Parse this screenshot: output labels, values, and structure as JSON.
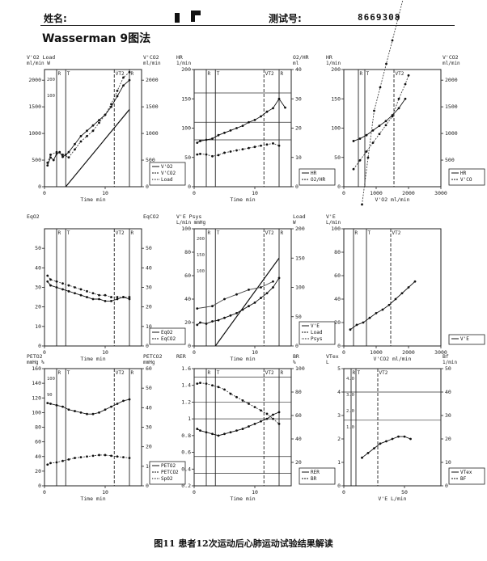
{
  "header": {
    "name_label": "姓名:",
    "id_label": "测试号:",
    "id_value": "8669308"
  },
  "title": "Wasserman 9图法",
  "caption": "图11 患者12次运动后心肺运动试验结果解读",
  "chart_data": [
    {
      "id": "p1",
      "type": "scatter",
      "ylabel_left": "V'O2 Load",
      "ylabel_left_unit": "ml/min W",
      "ylabel_right": "V'CO2",
      "ylabel_right_unit": "ml/min",
      "xlabel": "Time min",
      "xlim": [
        0,
        16
      ],
      "ylim": [
        0,
        2200
      ],
      "yr_lim": [
        0,
        2200
      ],
      "xticks": [
        0,
        10
      ],
      "yticks": [
        0,
        500,
        1000,
        1500,
        2000
      ],
      "yr_ticks": [
        0,
        500,
        1000,
        1500,
        2000
      ],
      "inner_ticks": [
        "200",
        "100"
      ],
      "vlines": [
        2.0,
        3.5,
        11.5,
        14.0
      ],
      "vline_labels": [
        "R",
        "T",
        "VT2",
        "R"
      ],
      "legend": [
        "V'O2",
        "V'CO2",
        "Load"
      ],
      "series": [
        {
          "name": "V'O2",
          "x": [
            0.5,
            1,
            1.5,
            2,
            2.5,
            3,
            3.5,
            4,
            5,
            6,
            7,
            8,
            9,
            10,
            11,
            12,
            13,
            14
          ],
          "y": [
            400,
            550,
            500,
            620,
            650,
            560,
            600,
            650,
            800,
            950,
            1050,
            1150,
            1250,
            1350,
            1500,
            1700,
            1900,
            2000
          ]
        },
        {
          "name": "V'CO2",
          "x": [
            0.5,
            1,
            2,
            3,
            4,
            5,
            6,
            7,
            8,
            9,
            10,
            11,
            12,
            13,
            14
          ],
          "y": [
            450,
            600,
            650,
            600,
            550,
            700,
            850,
            950,
            1050,
            1200,
            1350,
            1550,
            1800,
            2050,
            2150
          ]
        },
        {
          "name": "Load",
          "x": [
            3.5,
            14
          ],
          "y": [
            0,
            1450
          ]
        }
      ]
    },
    {
      "id": "p2",
      "type": "scatter",
      "ylabel_left": "HR",
      "ylabel_left_unit": "1/min",
      "ylabel_right": "O2/HR",
      "ylabel_right_unit": "ml",
      "xlabel": "Time min",
      "xlim": [
        0,
        16
      ],
      "ylim": [
        0,
        200
      ],
      "yr_lim": [
        0,
        40
      ],
      "xticks": [
        0,
        10
      ],
      "yticks": [
        0,
        50,
        100,
        150,
        200
      ],
      "yr_ticks": [
        0,
        10,
        20,
        30,
        40
      ],
      "vlines": [
        2.0,
        3.5,
        11.5,
        14.0
      ],
      "vline_labels": [
        "R",
        "T",
        "VT2",
        "R"
      ],
      "hlines": [
        160,
        110,
        80
      ],
      "legend": [
        "HR",
        "O2/HR"
      ],
      "series": [
        {
          "name": "HR",
          "x": [
            0.5,
            1,
            2,
            3,
            4,
            5,
            6,
            7,
            8,
            9,
            10,
            11,
            12,
            13,
            14,
            15
          ],
          "y": [
            75,
            78,
            80,
            82,
            88,
            92,
            96,
            100,
            104,
            110,
            114,
            120,
            128,
            134,
            150,
            135
          ]
        },
        {
          "name": "O2/HR",
          "x": [
            0.5,
            1,
            2,
            3,
            4,
            5,
            6,
            7,
            8,
            9,
            10,
            11,
            12,
            13,
            14
          ],
          "y": [
            55,
            56,
            55,
            52,
            54,
            58,
            60,
            62,
            64,
            66,
            68,
            70,
            72,
            74,
            70
          ]
        }
      ]
    },
    {
      "id": "p3",
      "type": "scatter",
      "ylabel_left": "HR",
      "ylabel_left_unit": "1/min",
      "ylabel_right": "V'CO2",
      "ylabel_right_unit": "ml/min",
      "xlabel": "V'O2 ml/min",
      "xlim": [
        0,
        3000
      ],
      "ylim": [
        0,
        200
      ],
      "yr_lim": [
        0,
        2200
      ],
      "xticks": [
        0,
        1000,
        2000,
        3000
      ],
      "yticks": [
        0,
        50,
        100,
        150,
        200
      ],
      "yr_ticks": [
        500,
        1000,
        1500,
        2000
      ],
      "vlines": [
        450,
        650,
        1550
      ],
      "vline_labels": [
        "R",
        "T",
        "VT2"
      ],
      "legend": [
        "HR",
        "V'CO"
      ],
      "series": [
        {
          "name": "HR",
          "x": [
            300,
            500,
            700,
            900,
            1100,
            1300,
            1500,
            1700,
            1900
          ],
          "y": [
            78,
            82,
            88,
            96,
            104,
            112,
            122,
            134,
            150
          ]
        },
        {
          "name": "V'CO",
          "x": [
            300,
            500,
            700,
            900,
            1100,
            1300,
            1500,
            1700,
            1900,
            2000
          ],
          "y": [
            30,
            45,
            60,
            75,
            90,
            105,
            120,
            150,
            175,
            190
          ]
        }
      ]
    },
    {
      "id": "p4",
      "type": "scatter",
      "ylabel_left": "EqO2",
      "ylabel_left_unit": "",
      "ylabel_right": "EqCO2",
      "ylabel_right_unit": "",
      "xlabel": "Time min",
      "xlim": [
        0,
        16
      ],
      "ylim": [
        0,
        60
      ],
      "yr_lim": [
        0,
        60
      ],
      "xticks": [
        0,
        10
      ],
      "yticks": [
        0,
        10,
        20,
        30,
        40,
        50
      ],
      "yr_ticks": [
        0,
        10,
        20,
        30,
        40,
        50
      ],
      "vlines": [
        2.0,
        3.5,
        11.5,
        14.0
      ],
      "vline_labels": [
        "R",
        "T",
        "VT2",
        "R"
      ],
      "legend": [
        "EqO2",
        "EqCO2"
      ],
      "series": [
        {
          "name": "EqO2",
          "x": [
            0.5,
            1,
            2,
            3,
            4,
            5,
            6,
            7,
            8,
            9,
            10,
            11,
            12,
            13,
            14
          ],
          "y": [
            33,
            31,
            30,
            29,
            28,
            27,
            26,
            25,
            24,
            24,
            23,
            23,
            24,
            25,
            24
          ]
        },
        {
          "name": "EqCO2",
          "x": [
            0.5,
            1,
            2,
            3,
            4,
            5,
            6,
            7,
            8,
            9,
            10,
            11,
            12,
            13,
            14
          ],
          "y": [
            36,
            34,
            33,
            32,
            31,
            30,
            29,
            28,
            27,
            26,
            26,
            25,
            25,
            25,
            25
          ]
        }
      ]
    },
    {
      "id": "p5",
      "type": "scatter",
      "ylabel_left": "V'E Psys",
      "ylabel_left_unit": "L/min mmHg",
      "ylabel_right": "Load",
      "ylabel_right_unit": "W",
      "xlabel": "Time min",
      "xlim": [
        0,
        16
      ],
      "ylim": [
        0,
        100
      ],
      "yr_lim": [
        0,
        200
      ],
      "xticks": [
        0,
        10
      ],
      "yticks": [
        0,
        20,
        40,
        60,
        80,
        100
      ],
      "yr_ticks": [
        0,
        50,
        100,
        150,
        200
      ],
      "inner_ticks": [
        "200",
        "150",
        "100"
      ],
      "vlines": [
        2.0,
        3.5,
        11.5,
        14.0
      ],
      "vline_labels": [
        "R",
        "T",
        "VT2",
        "R"
      ],
      "legend": [
        "V'E",
        "Load",
        "Psys"
      ],
      "series": [
        {
          "name": "V'E",
          "x": [
            0.5,
            1,
            2,
            3,
            4,
            5,
            6,
            7,
            8,
            9,
            10,
            11,
            12,
            13,
            14
          ],
          "y": [
            18,
            20,
            19,
            21,
            22,
            24,
            26,
            28,
            31,
            34,
            37,
            41,
            45,
            50,
            58
          ]
        },
        {
          "name": "Load",
          "x": [
            3.5,
            14
          ],
          "y": [
            0,
            75
          ]
        },
        {
          "name": "Psys",
          "x": [
            0.5,
            3,
            5,
            7,
            9,
            11,
            13
          ],
          "y": [
            32,
            34,
            40,
            44,
            48,
            50,
            55
          ]
        }
      ]
    },
    {
      "id": "p6",
      "type": "scatter",
      "ylabel_left": "V'E",
      "ylabel_left_unit": "L/min",
      "ylabel_right": "",
      "ylabel_right_unit": "",
      "xlabel": "V'CO2 ml/min",
      "xlim": [
        0,
        3000
      ],
      "ylim": [
        0,
        100
      ],
      "yr_lim": null,
      "xticks": [
        0,
        1000,
        2000,
        3000
      ],
      "yticks": [
        0,
        20,
        40,
        60,
        80,
        100
      ],
      "yr_ticks": [],
      "vlines": [
        300,
        700,
        1450
      ],
      "vline_labels": [
        "R",
        "T",
        "VT2"
      ],
      "legend": [
        "V'E"
      ],
      "series": [
        {
          "name": "V'E",
          "x": [
            200,
            400,
            600,
            800,
            1000,
            1200,
            1400,
            1600,
            1800,
            2000,
            2200
          ],
          "y": [
            14,
            18,
            20,
            24,
            28,
            31,
            35,
            40,
            45,
            50,
            55
          ]
        }
      ]
    },
    {
      "id": "p7",
      "type": "scatter",
      "ylabel_left": "PETO2",
      "ylabel_left_unit": "mmHg %",
      "ylabel_right": "PETCO2",
      "ylabel_right_unit": "mmHg",
      "xlabel": "Time min",
      "xlim": [
        0,
        16
      ],
      "ylim": [
        0,
        160
      ],
      "yr_lim": [
        0,
        60
      ],
      "xticks": [
        0,
        10
      ],
      "yticks": [
        0,
        20,
        40,
        60,
        80,
        100,
        120,
        140,
        160
      ],
      "yr_ticks": [
        0,
        10,
        20,
        30,
        40,
        50,
        60
      ],
      "inner_ticks": [
        "100",
        "90"
      ],
      "vlines": [
        2.0,
        3.5,
        11.5,
        14.0
      ],
      "vline_labels": [
        "R",
        "T",
        "VT2",
        "R"
      ],
      "legend": [
        "PETO2",
        "PETCO2",
        "SpO2"
      ],
      "series": [
        {
          "name": "PETO2",
          "x": [
            0.5,
            1,
            2,
            3,
            4,
            5,
            6,
            7,
            8,
            9,
            10,
            11,
            12,
            13,
            14
          ],
          "y": [
            113,
            112,
            110,
            108,
            104,
            102,
            100,
            98,
            98,
            100,
            104,
            108,
            112,
            116,
            118
          ]
        },
        {
          "name": "PETCO2",
          "x": [
            0.5,
            1,
            2,
            3,
            4,
            5,
            6,
            7,
            8,
            9,
            10,
            11,
            12,
            13,
            14
          ],
          "y": [
            29,
            31,
            32,
            34,
            36,
            38,
            39,
            40,
            41,
            42,
            42,
            41,
            40,
            39,
            38
          ]
        }
      ]
    },
    {
      "id": "p8",
      "type": "scatter",
      "ylabel_left": "RER",
      "ylabel_left_unit": "",
      "ylabel_right": "BR",
      "ylabel_right_unit": "%",
      "xlabel": "Time min",
      "xlim": [
        0,
        16
      ],
      "ylim": [
        0.2,
        1.6
      ],
      "yr_lim": [
        0,
        100
      ],
      "xticks": [
        0,
        10
      ],
      "yticks": [
        0.2,
        0.4,
        0.6,
        0.8,
        1.0,
        1.2,
        1.4,
        1.6
      ],
      "yr_ticks": [
        20,
        40,
        60,
        80,
        100
      ],
      "vlines": [
        2.0,
        3.5,
        11.5,
        14.0
      ],
      "vline_labels": [
        "R",
        "T",
        "VT2",
        "R"
      ],
      "hlines": [
        1.5,
        1.2,
        1.0,
        0.55,
        0.35
      ],
      "legend": [
        "RER",
        "BR"
      ],
      "series": [
        {
          "name": "RER",
          "x": [
            0.5,
            1,
            2,
            3,
            4,
            5,
            6,
            7,
            8,
            9,
            10,
            11,
            12,
            13,
            14
          ],
          "y": [
            0.88,
            0.86,
            0.84,
            0.82,
            0.8,
            0.82,
            0.84,
            0.86,
            0.88,
            0.91,
            0.94,
            0.97,
            1.0,
            1.05,
            1.08
          ]
        },
        {
          "name": "BR",
          "x": [
            0.5,
            1,
            2,
            3,
            4,
            5,
            6,
            7,
            8,
            9,
            10,
            11,
            12,
            13,
            14
          ],
          "y": [
            1.42,
            1.43,
            1.42,
            1.4,
            1.38,
            1.35,
            1.3,
            1.26,
            1.22,
            1.18,
            1.14,
            1.1,
            1.06,
            1.0,
            0.94
          ]
        }
      ]
    },
    {
      "id": "p9",
      "type": "scatter",
      "ylabel_left": "VTex",
      "ylabel_left_unit": "L",
      "ylabel_right": "Bf",
      "ylabel_right_unit": "1/min",
      "xlabel": "V'E L/min",
      "xlim": [
        0,
        80
      ],
      "ylim": [
        0,
        5
      ],
      "yr_lim": [
        0,
        50
      ],
      "xticks": [
        0,
        50
      ],
      "yticks": [
        0,
        1,
        2,
        3,
        4,
        5
      ],
      "yr_ticks": [
        0,
        10,
        20,
        30,
        40,
        50
      ],
      "inner_ticks": [
        "4.0",
        "3.0",
        "2.0",
        "1.0"
      ],
      "vlines": [
        6,
        10,
        28
      ],
      "vline_labels": [
        "R",
        "T",
        "VT2"
      ],
      "hlines": [
        4.0,
        2.8
      ],
      "legend": [
        "VTex",
        "BF"
      ],
      "series": [
        {
          "name": "VTex",
          "x": [
            15,
            20,
            25,
            30,
            35,
            40,
            45,
            50,
            55
          ],
          "y": [
            1.2,
            1.4,
            1.6,
            1.8,
            1.9,
            2.0,
            2.1,
            2.1,
            2.0
          ]
        },
        {
          "name": "BF",
          "x": [
            15,
            20,
            25,
            30,
            35,
            40,
            45,
            50,
            55
          ],
          "y": [
            12,
            14,
            16,
            17,
            18,
            19,
            20,
            21,
            22
          ]
        }
      ]
    }
  ]
}
